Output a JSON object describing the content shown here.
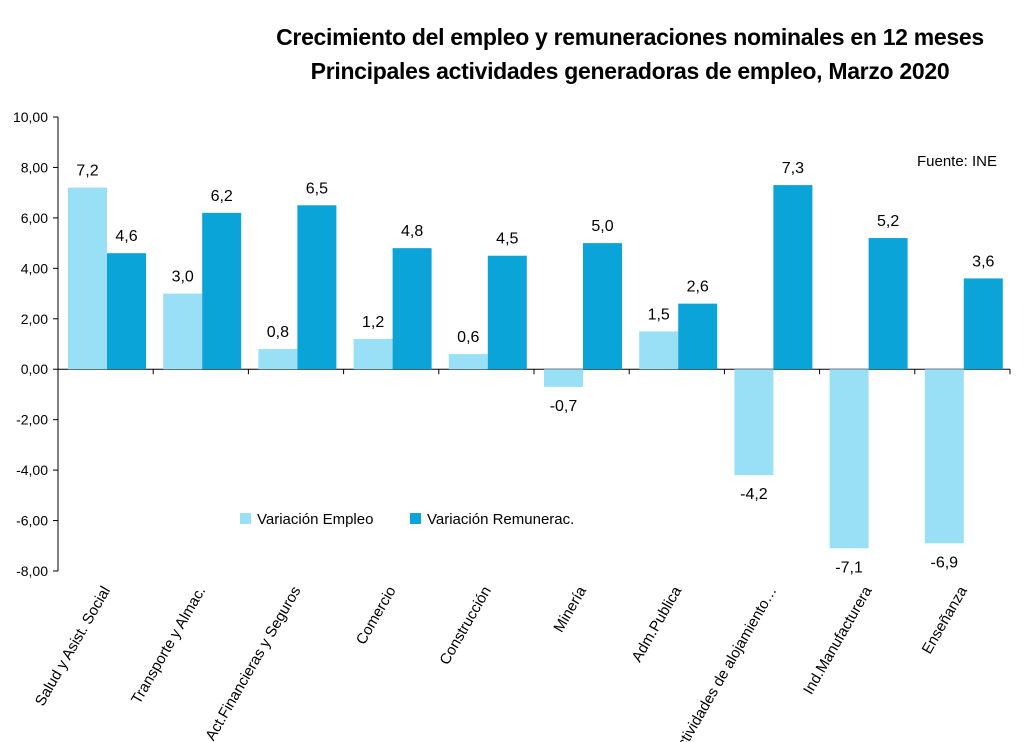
{
  "chart_data": {
    "type": "bar",
    "title": "Crecimiento del empleo y remuneraciones nominales en 12 meses",
    "subtitle": "Principales actividades generadoras de empleo, Marzo 2020",
    "source": "Fuente: INE",
    "categories": [
      "Salud y Asist. Social",
      "Transporte y Almac.",
      "Act.Financieras y Seguros",
      "Comercio",
      "Construcción",
      "Minería",
      "Adm.Publica",
      "Actividades de alojamiento…",
      "Ind.Manufacturera",
      "Enseñanza"
    ],
    "series": [
      {
        "name": "Variación Empleo",
        "color": "#99e0f7",
        "values": [
          7.2,
          3.0,
          0.8,
          1.2,
          0.6,
          -0.7,
          1.5,
          -4.2,
          -7.1,
          -6.9
        ],
        "labels": [
          "7,2",
          "3,0",
          "0,8",
          "1,2",
          "0,6",
          "-0,7",
          "1,5",
          "-4,2",
          "-7,1",
          "-6,9"
        ]
      },
      {
        "name": "Variación Remunerac.",
        "color": "#0ba4d8",
        "values": [
          4.6,
          6.2,
          6.5,
          4.8,
          4.5,
          5.0,
          2.6,
          7.3,
          5.2,
          3.6
        ],
        "labels": [
          "4,6",
          "6,2",
          "6,5",
          "4,8",
          "4,5",
          "5,0",
          "2,6",
          "7,3",
          "5,2",
          "3,6"
        ]
      }
    ],
    "ylim": [
      -8,
      10
    ],
    "yticks": [
      10,
      8,
      6,
      4,
      2,
      0,
      -2,
      -4,
      -6,
      -8
    ],
    "ytick_labels": [
      "10,00",
      "8,00",
      "6,00",
      "4,00",
      "2,00",
      "0,00",
      "-2,00",
      "-4,00",
      "-6,00",
      "-8,00"
    ],
    "grid": false,
    "legend_position": "lower-left inside plot"
  }
}
